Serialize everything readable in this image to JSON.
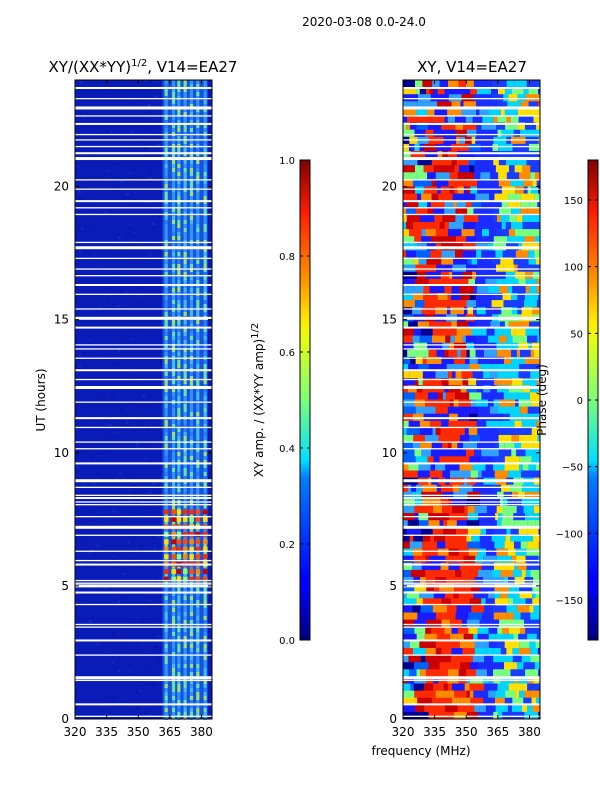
{
  "chart_data": [
    {
      "type": "heatmap",
      "title": "XY/(XX*YY)",
      "title_superscript": "1/2",
      "title_suffix": ", V14=EA27",
      "xlabel": "",
      "ylabel": "UT (hours)",
      "xlim": [
        320,
        385
      ],
      "ylim": [
        0,
        24
      ],
      "xticks": [
        "320",
        "335",
        "350",
        "365",
        "380"
      ],
      "xtick_values": [
        320,
        335,
        350,
        365,
        380
      ],
      "yticks": [
        "0",
        "5",
        "10",
        "15",
        "20"
      ],
      "ytick_values": [
        0,
        5,
        10,
        15,
        20
      ],
      "colorbar": {
        "label": "XY amp. / (XX*YY amp)",
        "label_superscript": "1/2",
        "range": [
          0.0,
          1.0
        ],
        "ticks": [
          "0.0",
          "0.2",
          "0.4",
          "0.6",
          "0.8",
          "1.0"
        ],
        "tick_values": [
          0.0,
          0.2,
          0.4,
          0.6,
          0.8,
          1.0
        ],
        "colormap": "jet"
      },
      "bright_band_mhz": [
        361.5,
        383
      ],
      "strong_hours": [
        5.2,
        7.9
      ]
    },
    {
      "type": "heatmap",
      "title": "XY, V14=EA27",
      "xlabel": "frequency (MHz)",
      "ylabel": "",
      "xlim": [
        320,
        385
      ],
      "ylim": [
        0,
        24
      ],
      "xticks": [
        "320",
        "335",
        "350",
        "365",
        "380"
      ],
      "xtick_values": [
        320,
        335,
        350,
        365,
        380
      ],
      "yticks": [
        "0",
        "5",
        "10",
        "15",
        "20"
      ],
      "ytick_values": [
        0,
        5,
        10,
        15,
        20
      ],
      "colorbar": {
        "label": "Phase (deg)",
        "range": [
          -180,
          180
        ],
        "ticks": [
          "−150",
          "−100",
          "−50",
          "0",
          "50",
          "100",
          "150"
        ],
        "tick_values": [
          -150,
          -100,
          -50,
          0,
          50,
          100,
          150
        ],
        "colormap": "jet"
      }
    }
  ],
  "figure": {
    "suptitle": "2020-03-08 0.0-24.0"
  },
  "flagged_hours": [
    0.1,
    0.55,
    1.45,
    1.55,
    2.4,
    2.95,
    3.45,
    3.55,
    4.3,
    4.75,
    5.0,
    5.1,
    5.2,
    5.8,
    5.95,
    6.3,
    6.9,
    7.2,
    7.6,
    8.05,
    8.15,
    8.3,
    8.4,
    8.7,
    8.95,
    9.6,
    10.15,
    10.4,
    10.95,
    11.3,
    11.9,
    12.45,
    12.75,
    13.1,
    13.55,
    13.9,
    14.05,
    14.7,
    15.05,
    15.4,
    15.95,
    16.3,
    16.65,
    16.9,
    17.3,
    17.7,
    17.9,
    18.95,
    19.2,
    19.45,
    19.9,
    20.25,
    21.05,
    21.25,
    21.5,
    21.75,
    21.95,
    22.35,
    22.65,
    22.95,
    23.3,
    23.7
  ]
}
